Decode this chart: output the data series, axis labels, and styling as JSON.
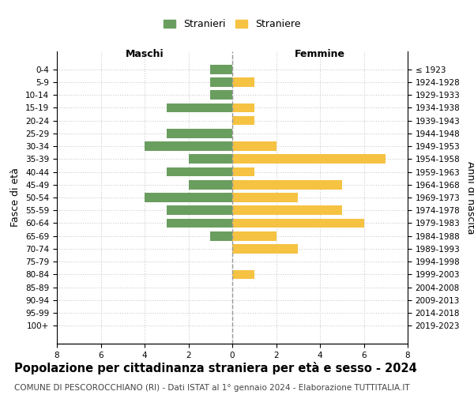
{
  "age_groups": [
    "0-4",
    "5-9",
    "10-14",
    "15-19",
    "20-24",
    "25-29",
    "30-34",
    "35-39",
    "40-44",
    "45-49",
    "50-54",
    "55-59",
    "60-64",
    "65-69",
    "70-74",
    "75-79",
    "80-84",
    "85-89",
    "90-94",
    "95-99",
    "100+"
  ],
  "birth_years": [
    "2019-2023",
    "2014-2018",
    "2009-2013",
    "2004-2008",
    "1999-2003",
    "1994-1998",
    "1989-1993",
    "1984-1988",
    "1979-1983",
    "1974-1978",
    "1969-1973",
    "1964-1968",
    "1959-1963",
    "1954-1958",
    "1949-1953",
    "1944-1948",
    "1939-1943",
    "1934-1938",
    "1929-1933",
    "1924-1928",
    "≤ 1923"
  ],
  "males": [
    1,
    1,
    1,
    3,
    0,
    3,
    4,
    2,
    3,
    2,
    4,
    3,
    3,
    1,
    0,
    0,
    0,
    0,
    0,
    0,
    0
  ],
  "females": [
    0,
    1,
    0,
    1,
    1,
    0,
    2,
    7,
    1,
    5,
    3,
    5,
    6,
    2,
    3,
    0,
    1,
    0,
    0,
    0,
    0
  ],
  "male_color": "#6a9e5f",
  "female_color": "#f5c242",
  "bar_height": 0.72,
  "xlim": 8,
  "title": "Popolazione per cittadinanza straniera per età e sesso - 2024",
  "subtitle": "COMUNE DI PESCOROCCHIANO (RI) - Dati ISTAT al 1° gennaio 2024 - Elaborazione TUTTITALIA.IT",
  "xlabel_left": "Maschi",
  "xlabel_right": "Femmine",
  "ylabel_left": "Fasce di età",
  "ylabel_right": "Anni di nascita",
  "legend_male": "Stranieri",
  "legend_female": "Straniere",
  "bg_color": "#ffffff",
  "grid_color": "#cccccc",
  "title_fontsize": 10.5,
  "subtitle_fontsize": 7.5,
  "label_fontsize": 9,
  "tick_fontsize": 7.5
}
